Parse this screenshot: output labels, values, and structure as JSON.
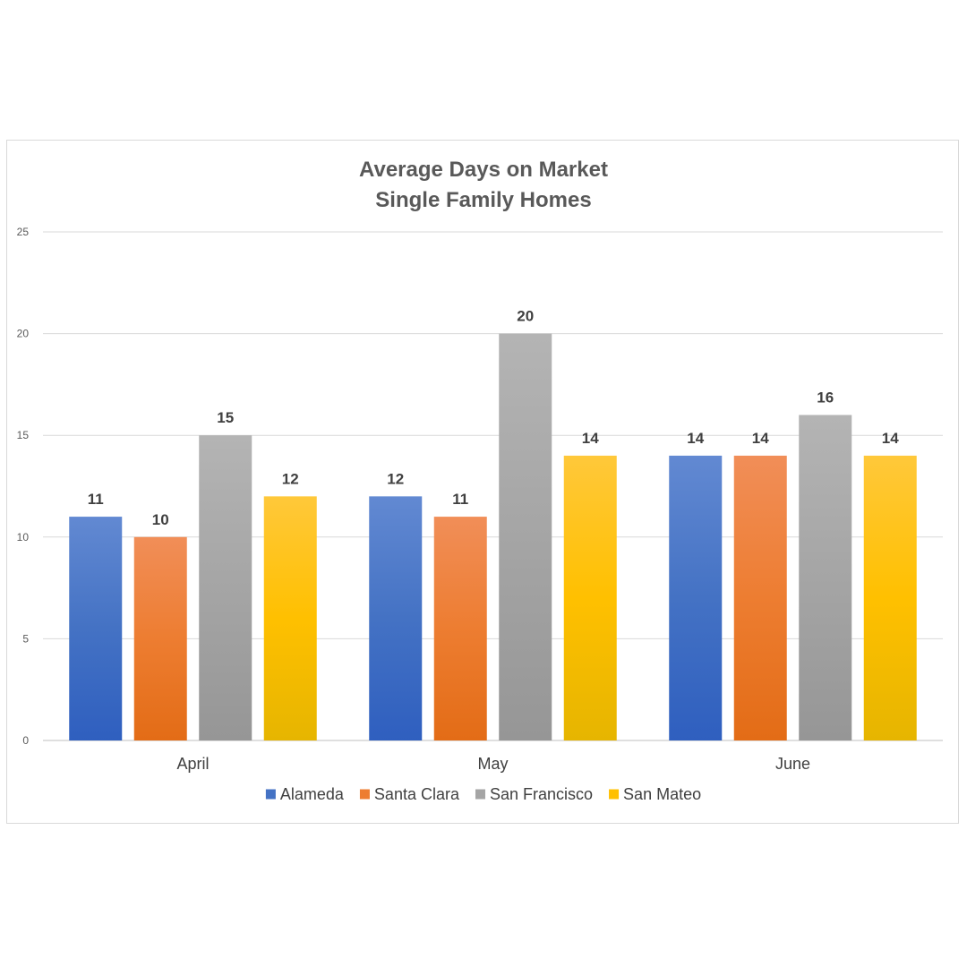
{
  "chart_data": {
    "type": "bar",
    "title": [
      "Average Days on Market",
      "Single Family Homes"
    ],
    "categories": [
      "April",
      "May",
      "June"
    ],
    "series": [
      {
        "name": "Alameda",
        "values": [
          11,
          12,
          14
        ],
        "color": "#4472c4",
        "color_top": "#6289d2",
        "color_bottom": "#2f5fbf"
      },
      {
        "name": "Santa Clara",
        "values": [
          10,
          11,
          14
        ],
        "color": "#ed7d31",
        "color_top": "#f18e58",
        "color_bottom": "#e36c16"
      },
      {
        "name": "San Francisco",
        "values": [
          15,
          20,
          16
        ],
        "color": "#a5a5a5",
        "color_top": "#b4b4b4",
        "color_bottom": "#969696"
      },
      {
        "name": "San Mateo",
        "values": [
          12,
          14,
          14
        ],
        "color": "#ffc000",
        "color_top": "#ffc83a",
        "color_bottom": "#e6b500"
      }
    ],
    "ylim": [
      0,
      25
    ],
    "yticks": [
      0,
      5,
      10,
      15,
      20,
      25
    ],
    "grid": true,
    "data_labels": true,
    "legend": "bottom"
  }
}
